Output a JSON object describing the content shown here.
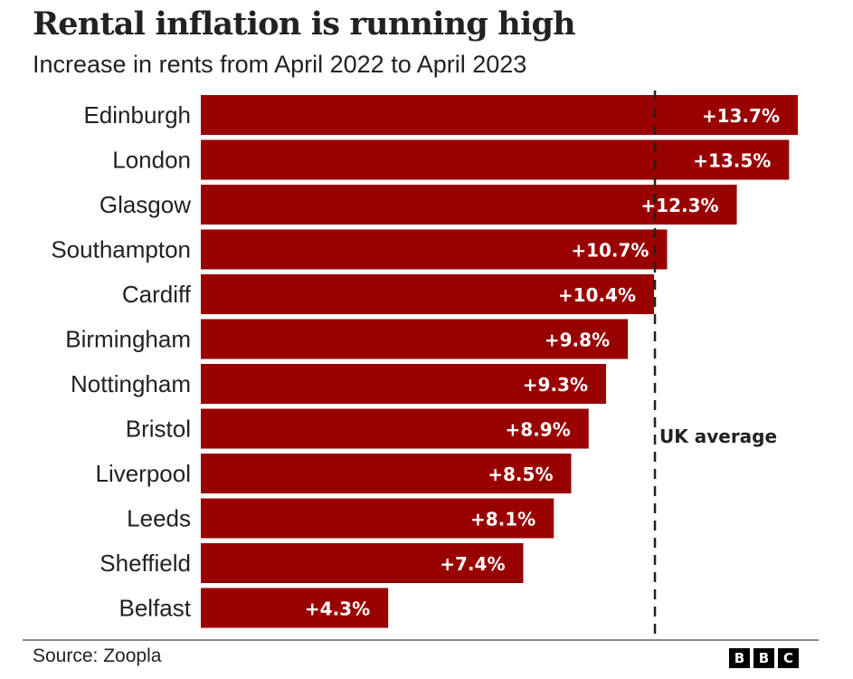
{
  "header": {
    "title": "Rental inflation is running high",
    "subtitle": "Increase in rents from April 2022 to April 2023"
  },
  "footer": {
    "source": "Source: Zoopla",
    "logo_letters": [
      "B",
      "B",
      "C"
    ]
  },
  "colors": {
    "bar": "#990000",
    "reference_line": "#222222"
  },
  "chart_data": {
    "type": "bar",
    "orientation": "horizontal",
    "title": "Rental inflation is running high",
    "subtitle": "Increase in rents from April 2022 to April 2023",
    "xlabel": "",
    "ylabel": "",
    "unit": "%",
    "categories": [
      "Edinburgh",
      "London",
      "Glasgow",
      "Southampton",
      "Cardiff",
      "Birmingham",
      "Nottingham",
      "Bristol",
      "Liverpool",
      "Leeds",
      "Sheffield",
      "Belfast"
    ],
    "values": [
      13.7,
      13.5,
      12.3,
      10.7,
      10.4,
      9.8,
      9.3,
      8.9,
      8.5,
      8.1,
      7.4,
      4.3
    ],
    "data_labels": [
      "+13.7%",
      "+13.5%",
      "+12.3%",
      "+10.7%",
      "+10.4%",
      "+9.8%",
      "+9.3%",
      "+8.9%",
      "+8.5%",
      "+8.1%",
      "+7.4%",
      "+4.3%"
    ],
    "xlim": [
      0,
      13.7
    ],
    "grid": false,
    "legend": "none",
    "reference_line": {
      "label": "UK average",
      "value": 10.4,
      "style": "dashed"
    },
    "source": "Source: Zoopla"
  }
}
